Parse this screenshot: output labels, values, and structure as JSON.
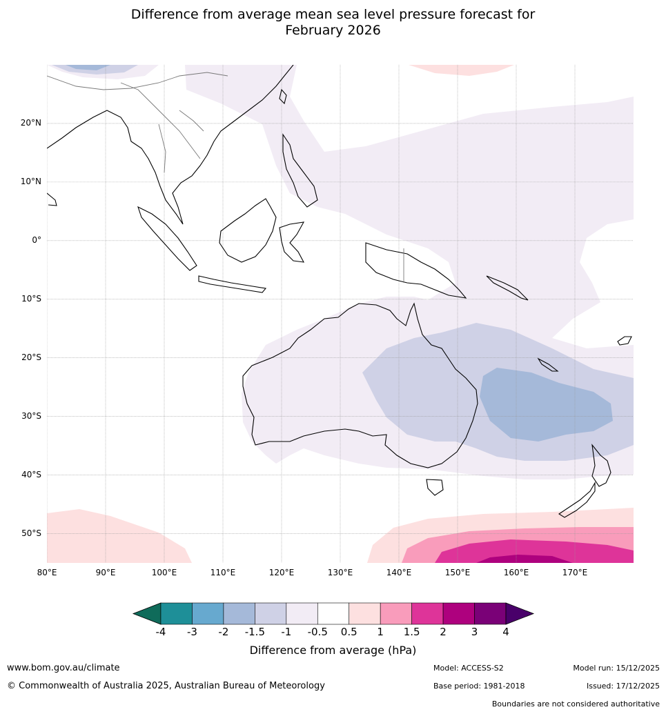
{
  "title": {
    "line1": "Difference from average mean sea level pressure forecast for",
    "line2": "February 2026"
  },
  "map": {
    "lat_labels": [
      "20°N",
      "10°N",
      "0°",
      "10°S",
      "20°S",
      "30°S",
      "40°S",
      "50°S"
    ],
    "lat_values": [
      20,
      10,
      0,
      -10,
      -20,
      -30,
      -40,
      -50
    ],
    "lon_labels": [
      "80°E",
      "90°E",
      "100°E",
      "110°E",
      "120°E",
      "130°E",
      "140°E",
      "150°E",
      "160°E",
      "170°E"
    ],
    "lon_values": [
      80,
      90,
      100,
      110,
      120,
      130,
      140,
      150,
      160,
      170
    ],
    "extent": {
      "lon_min": 80,
      "lon_max": 180,
      "lat_min": -55,
      "lat_max": 30
    }
  },
  "colorbar": {
    "label": "Difference from average (hPa)",
    "ticks": [
      "-4",
      "-3",
      "-2",
      "-1.5",
      "-1",
      "-0.5",
      "0.5",
      "1",
      "1.5",
      "2",
      "3",
      "4"
    ],
    "colors": [
      "#0f6b5a",
      "#1e8f98",
      "#67a9cf",
      "#a5b9d9",
      "#cfd1e6",
      "#f2ecf5",
      "#ffffff",
      "#fde0e0",
      "#f99cbb",
      "#de3499",
      "#ae017e",
      "#7a0177",
      "#49006a"
    ]
  },
  "footer": {
    "website": "www.bom.gov.au/climate",
    "copyright": "© Commonwealth of Australia 2025, Australian Bureau of Meteorology",
    "model": "Model: ACCESS-S2",
    "base_period": "Base period: 1981-2018",
    "model_run": "Model run: 15/12/2025",
    "issued": "Issued: 17/12/2025",
    "disclaimer": "Boundaries are not considered authoritative"
  }
}
